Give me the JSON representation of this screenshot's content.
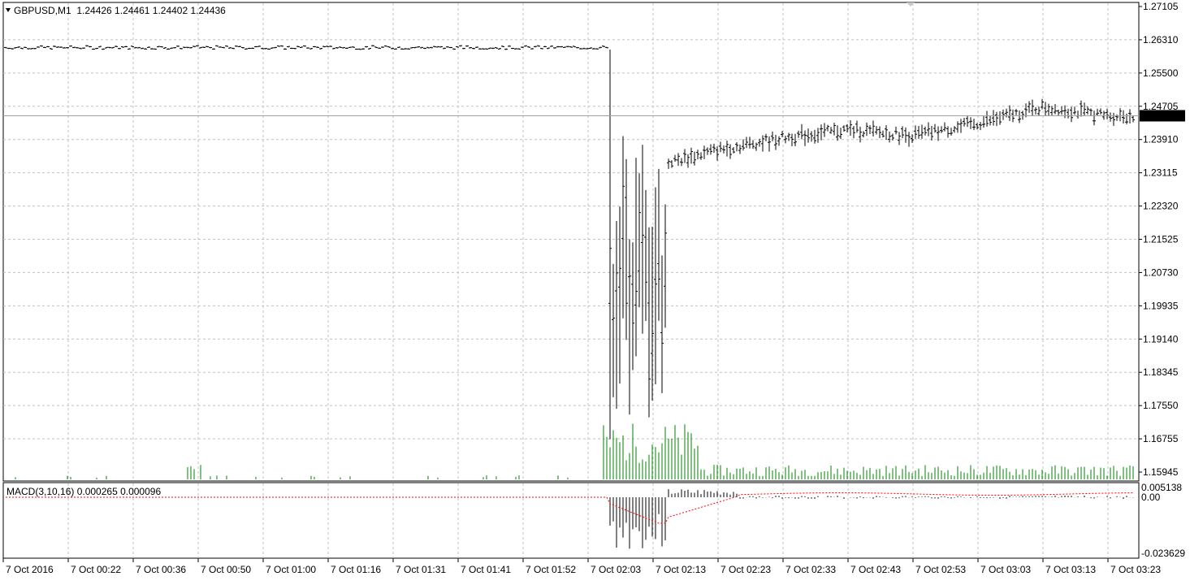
{
  "header": {
    "symbol_line": "GBPUSD,M1  1.24426 1.24461 1.24402 1.24436",
    "collapse_icon": "triangle-down-icon"
  },
  "price_axis": {
    "ticks": [
      "1.27105",
      "1.26310",
      "1.25500",
      "1.24705",
      "1.23910",
      "1.23115",
      "1.22320",
      "1.21525",
      "1.20730",
      "1.19935",
      "1.19140",
      "1.18345",
      "1.17550",
      "1.16755",
      "1.15945"
    ],
    "current_price": "1.24436"
  },
  "macd": {
    "label": "MACD(3,10,16) 0.000265 0.000096",
    "ticks": [
      "0.005138",
      "0.00",
      "-0.023629"
    ]
  },
  "time_axis": {
    "labels": [
      "7 Oct 2016",
      "7 Oct 00:22",
      "7 Oct 00:36",
      "7 Oct 00:50",
      "7 Oct 01:00",
      "7 Oct 01:16",
      "7 Oct 01:31",
      "7 Oct 01:41",
      "7 Oct 01:52",
      "7 Oct 02:03",
      "7 Oct 02:13",
      "7 Oct 02:23",
      "7 Oct 02:33",
      "7 Oct 02:43",
      "7 Oct 02:53",
      "7 Oct 03:03",
      "7 Oct 03:13",
      "7 Oct 03:23"
    ]
  },
  "colors": {
    "bars": "#000000",
    "grid": "#c0c0c0",
    "volume": "#008000",
    "macd_signal": "#ff0000",
    "price_tag_bg": "#000000",
    "price_tag_fg": "#ffffff"
  },
  "chart_data": {
    "type": "ohlc",
    "symbol": "GBPUSD",
    "timeframe": "M1",
    "ylim": [
      1.1575,
      1.271
    ],
    "grid": true,
    "price_scale": "right",
    "segments": [
      {
        "from": "7 Oct 2016",
        "to": "7 Oct 02:03",
        "close_approx": 1.261,
        "note": "flat range 1.2600-1.2620"
      },
      {
        "at": "7 Oct 02:03",
        "low_approx": 1.165,
        "high_approx": 1.261
      },
      {
        "at": "7 Oct 02:13",
        "close_approx": 1.232
      },
      {
        "at": "7 Oct 02:23",
        "close_approx": 1.236
      },
      {
        "at": "7 Oct 02:33",
        "close_approx": 1.239
      },
      {
        "at": "7 Oct 02:43",
        "close_approx": 1.241
      },
      {
        "at": "7 Oct 02:53",
        "close_approx": 1.2395
      },
      {
        "at": "7 Oct 03:03",
        "close_approx": 1.2425
      },
      {
        "at": "7 Oct 03:13",
        "close_approx": 1.2465
      },
      {
        "at": "7 Oct 03:23",
        "close": 1.24436
      }
    ],
    "last_bar": {
      "open": 1.24426,
      "high": 1.24461,
      "low": 1.24402,
      "close": 1.24436
    },
    "indicators": [
      {
        "name": "MACD(3,10,16)",
        "main": 0.000265,
        "signal": 9.6e-05,
        "ylim": [
          -0.023629,
          0.005138
        ]
      },
      {
        "name": "Volume",
        "type": "bar"
      }
    ]
  }
}
